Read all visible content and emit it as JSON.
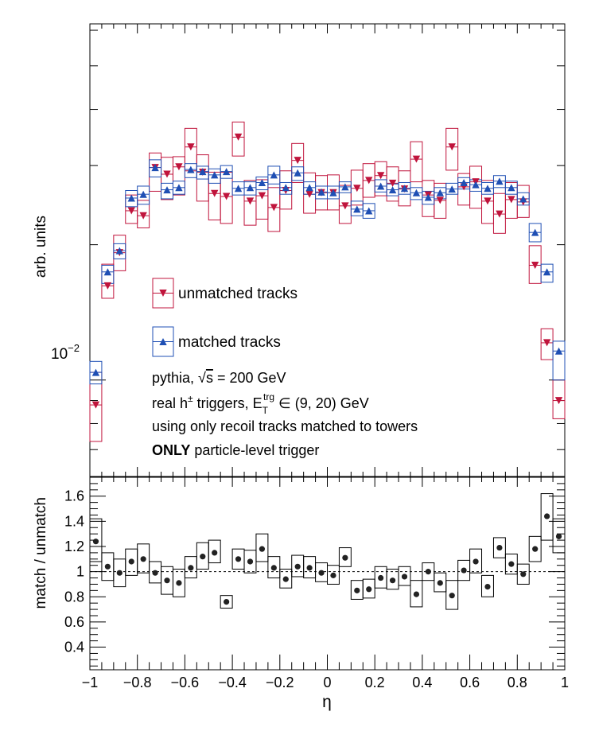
{
  "chart_data": [
    {
      "type": "scatter",
      "panel": "top",
      "ylabel": "arb. units",
      "yscale": "log",
      "ylim": [
        0.0061,
        0.062
      ],
      "xlim": [
        -1,
        1
      ],
      "y_tick_label": "10",
      "y_tick_label_exp": "−2",
      "y_tick_value": 0.01,
      "x": [
        -0.975,
        -0.925,
        -0.875,
        -0.825,
        -0.775,
        -0.725,
        -0.675,
        -0.625,
        -0.575,
        -0.525,
        -0.475,
        -0.425,
        -0.375,
        -0.325,
        -0.275,
        -0.225,
        -0.175,
        -0.125,
        -0.075,
        -0.025,
        0.025,
        0.075,
        0.125,
        0.175,
        0.225,
        0.275,
        0.325,
        0.375,
        0.425,
        0.475,
        0.525,
        0.575,
        0.625,
        0.675,
        0.725,
        0.775,
        0.825,
        0.875,
        0.925,
        0.975
      ],
      "series": [
        {
          "name": "unmatched tracks",
          "marker": "triangle-down",
          "color": "#c0143c",
          "values": [
            0.0088,
            0.0162,
            0.0192,
            0.0238,
            0.0232,
            0.0297,
            0.0287,
            0.0298,
            0.033,
            0.029,
            0.026,
            0.0256,
            0.0347,
            0.025,
            0.0257,
            0.0242,
            0.0264,
            0.0308,
            0.0259,
            0.0261,
            0.0261,
            0.0244,
            0.0267,
            0.0278,
            0.0285,
            0.0274,
            0.0266,
            0.031,
            0.0258,
            0.0251,
            0.033,
            0.0269,
            0.0276,
            0.025,
            0.0234,
            0.0252,
            0.0249,
            0.018,
            0.0121,
            0.009
          ],
          "err_lo": [
            0.0073,
            0.0152,
            0.0175,
            0.0223,
            0.0218,
            0.0263,
            0.0252,
            0.0258,
            0.0292,
            0.025,
            0.0227,
            0.0223,
            0.0315,
            0.0221,
            0.0228,
            0.0214,
            0.024,
            0.0275,
            0.0235,
            0.0239,
            0.0239,
            0.0223,
            0.0245,
            0.0255,
            0.0257,
            0.025,
            0.0244,
            0.0276,
            0.0231,
            0.0229,
            0.0293,
            0.0245,
            0.0241,
            0.0223,
            0.0212,
            0.0229,
            0.023,
            0.0164,
            0.0111,
            0.0082
          ],
          "err_hi": [
            0.0104,
            0.0181,
            0.021,
            0.0258,
            0.0251,
            0.032,
            0.0313,
            0.0314,
            0.0363,
            0.0317,
            0.029,
            0.029,
            0.0375,
            0.0278,
            0.0279,
            0.0268,
            0.0292,
            0.0336,
            0.0289,
            0.0285,
            0.0286,
            0.0271,
            0.0293,
            0.0303,
            0.0306,
            0.0298,
            0.0292,
            0.0339,
            0.0278,
            0.0274,
            0.0363,
            0.0288,
            0.0299,
            0.0278,
            0.026,
            0.0275,
            0.0271,
            0.0199,
            0.013,
            0.01
          ]
        },
        {
          "name": "matched tracks",
          "marker": "triangle-up",
          "color": "#1f4fb4",
          "values": [
            0.0104,
            0.0174,
            0.0194,
            0.0254,
            0.0259,
            0.0297,
            0.0265,
            0.0268,
            0.0294,
            0.0291,
            0.0286,
            0.0291,
            0.0267,
            0.0268,
            0.0275,
            0.0286,
            0.0268,
            0.0289,
            0.0268,
            0.0262,
            0.0261,
            0.0269,
            0.024,
            0.0238,
            0.027,
            0.0265,
            0.0267,
            0.0261,
            0.0255,
            0.0261,
            0.0266,
            0.0275,
            0.0272,
            0.0267,
            0.0277,
            0.0268,
            0.0253,
            0.0213,
            0.0174,
            0.0116
          ],
          "err_lo": [
            0.0098,
            0.0164,
            0.0186,
            0.0243,
            0.0246,
            0.0283,
            0.0253,
            0.0259,
            0.0282,
            0.028,
            0.0274,
            0.0281,
            0.0258,
            0.0258,
            0.0265,
            0.0273,
            0.0259,
            0.0278,
            0.0259,
            0.0253,
            0.0253,
            0.0261,
            0.0232,
            0.0229,
            0.0262,
            0.0257,
            0.0259,
            0.0252,
            0.0246,
            0.0253,
            0.0259,
            0.0266,
            0.0263,
            0.0259,
            0.0268,
            0.0259,
            0.0245,
            0.0203,
            0.0165,
            0.01
          ],
          "err_hi": [
            0.011,
            0.018,
            0.0201,
            0.0264,
            0.027,
            0.0309,
            0.0274,
            0.0277,
            0.0303,
            0.0299,
            0.0295,
            0.03,
            0.0276,
            0.0276,
            0.0283,
            0.0299,
            0.0275,
            0.0298,
            0.0276,
            0.027,
            0.027,
            0.0276,
            0.025,
            0.0247,
            0.0279,
            0.0273,
            0.0275,
            0.0268,
            0.0263,
            0.0268,
            0.0274,
            0.0282,
            0.0279,
            0.0275,
            0.0285,
            0.0277,
            0.0261,
            0.0223,
            0.0181,
            0.0122
          ]
        }
      ],
      "legend": [
        {
          "label": "unmatched tracks"
        },
        {
          "label": "matched tracks"
        }
      ],
      "annotations": {
        "line1_pre": "pythia, ",
        "line1_sqrt": "√",
        "line1_s": "s",
        "line1_post": " = 200 GeV",
        "line2_pre": "real h",
        "line2_sup": "±",
        "line2_mid": " triggers, E",
        "line2_sub": "T",
        "line2_sup2": "trg",
        "line2_post": " ∈ (9, 20) GeV",
        "line3": "using only recoil tracks matched to towers",
        "line4_bold": "ONLY",
        "line4_rest": " particle-level trigger"
      }
    },
    {
      "type": "scatter",
      "panel": "bottom",
      "xlabel": "η",
      "ylabel": "match / unmatch",
      "xlim": [
        -1,
        1
      ],
      "ylim": [
        0.22,
        1.75
      ],
      "reference_line": 1,
      "x_ticks": [
        "−1",
        "−0.8",
        "−0.6",
        "−0.4",
        "−0.2",
        "0",
        "0.2",
        "0.4",
        "0.6",
        "0.8",
        "1"
      ],
      "y_ticks": [
        "0.4",
        "0.6",
        "0.8",
        "1",
        "1.2",
        "1.4",
        "1.6"
      ],
      "x": [
        -0.975,
        -0.925,
        -0.875,
        -0.825,
        -0.775,
        -0.725,
        -0.675,
        -0.625,
        -0.575,
        -0.525,
        -0.475,
        -0.425,
        -0.375,
        -0.325,
        -0.275,
        -0.225,
        -0.175,
        -0.125,
        -0.075,
        -0.025,
        0.025,
        0.075,
        0.125,
        0.175,
        0.225,
        0.275,
        0.325,
        0.375,
        0.425,
        0.475,
        0.525,
        0.575,
        0.625,
        0.675,
        0.725,
        0.775,
        0.825,
        0.875,
        0.925,
        0.975
      ],
      "series": [
        {
          "name": "match / unmatch",
          "color": "#222222",
          "values": [
            1.24,
            1.04,
            0.99,
            1.08,
            1.1,
            0.99,
            0.93,
            0.91,
            1.03,
            1.12,
            1.15,
            0.76,
            1.1,
            1.08,
            1.18,
            1.03,
            0.94,
            1.04,
            1.03,
            0.99,
            0.97,
            1.11,
            0.85,
            0.86,
            0.95,
            0.93,
            0.96,
            0.82,
            1.0,
            0.91,
            0.81,
            1.01,
            1.08,
            0.88,
            1.19,
            1.06,
            0.98,
            1.18,
            1.44,
            1.28
          ],
          "err_lo": [
            1.08,
            0.93,
            0.88,
            0.97,
            0.99,
            0.91,
            0.82,
            0.8,
            0.95,
            1.02,
            1.07,
            0.71,
            1.02,
            0.99,
            1.08,
            0.95,
            0.87,
            0.96,
            0.95,
            0.92,
            0.9,
            1.04,
            0.78,
            0.79,
            0.87,
            0.86,
            0.89,
            0.72,
            0.93,
            0.84,
            0.7,
            0.93,
            0.99,
            0.8,
            1.11,
            0.98,
            0.9,
            1.08,
            1.25,
            1.15
          ],
          "err_hi": [
            1.42,
            1.15,
            1.1,
            1.18,
            1.22,
            1.08,
            1.04,
            1.02,
            1.12,
            1.23,
            1.25,
            0.81,
            1.18,
            1.17,
            1.3,
            1.12,
            1.02,
            1.13,
            1.12,
            1.07,
            1.05,
            1.19,
            0.93,
            0.94,
            1.04,
            1.02,
            1.04,
            0.93,
            1.07,
            0.99,
            0.93,
            1.09,
            1.18,
            0.97,
            1.27,
            1.14,
            1.06,
            1.28,
            1.62,
            1.42
          ]
        }
      ]
    }
  ]
}
